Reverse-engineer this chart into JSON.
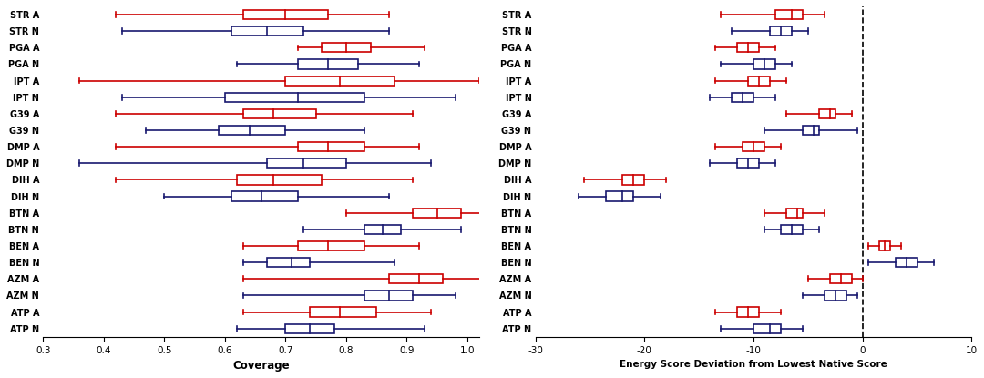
{
  "pair_names": [
    "STR",
    "PGA",
    "IPT",
    "G39",
    "DMP",
    "DIH",
    "BTN",
    "BEN",
    "AZM",
    "ATP"
  ],
  "red_color": "#CC0000",
  "blue_color": "#191970",
  "coverage": {
    "red": [
      [
        0.42,
        0.63,
        0.7,
        0.77,
        0.87
      ],
      [
        0.72,
        0.76,
        0.8,
        0.84,
        0.93
      ],
      [
        0.36,
        0.7,
        0.79,
        0.88,
        1.02
      ],
      [
        0.42,
        0.63,
        0.68,
        0.75,
        0.91
      ],
      [
        0.42,
        0.72,
        0.77,
        0.83,
        0.92
      ],
      [
        0.42,
        0.62,
        0.68,
        0.76,
        0.91
      ],
      [
        0.8,
        0.91,
        0.95,
        0.99,
        1.03
      ],
      [
        0.63,
        0.72,
        0.77,
        0.83,
        0.92
      ],
      [
        0.63,
        0.87,
        0.92,
        0.96,
        1.03
      ],
      [
        0.63,
        0.74,
        0.79,
        0.85,
        0.94
      ]
    ],
    "blue": [
      [
        0.43,
        0.61,
        0.67,
        0.73,
        0.87
      ],
      [
        0.62,
        0.72,
        0.77,
        0.82,
        0.92
      ],
      [
        0.43,
        0.6,
        0.72,
        0.83,
        0.98
      ],
      [
        0.47,
        0.59,
        0.64,
        0.7,
        0.83
      ],
      [
        0.36,
        0.67,
        0.73,
        0.8,
        0.94
      ],
      [
        0.5,
        0.61,
        0.66,
        0.72,
        0.87
      ],
      [
        0.73,
        0.83,
        0.86,
        0.89,
        0.99
      ],
      [
        0.63,
        0.67,
        0.71,
        0.74,
        0.88
      ],
      [
        0.63,
        0.83,
        0.87,
        0.91,
        0.98
      ],
      [
        0.62,
        0.7,
        0.74,
        0.78,
        0.93
      ]
    ]
  },
  "energy": {
    "red": [
      [
        -13.0,
        -8.0,
        -6.5,
        -5.5,
        -3.5
      ],
      [
        -13.5,
        -11.5,
        -10.5,
        -9.5,
        -8.0
      ],
      [
        -13.5,
        -10.5,
        -9.5,
        -8.5,
        -7.0
      ],
      [
        -7.0,
        -4.0,
        -3.0,
        -2.5,
        -1.0
      ],
      [
        -13.5,
        -11.0,
        -10.0,
        -9.0,
        -7.5
      ],
      [
        -25.5,
        -22.0,
        -21.0,
        -20.0,
        -18.0
      ],
      [
        -9.0,
        -7.0,
        -6.0,
        -5.5,
        -3.5
      ],
      [
        0.5,
        1.5,
        2.0,
        2.5,
        3.5
      ],
      [
        -5.0,
        -3.0,
        -2.0,
        -1.0,
        0.0
      ],
      [
        -13.5,
        -11.5,
        -10.5,
        -9.5,
        -7.5
      ]
    ],
    "blue": [
      [
        -12.0,
        -8.5,
        -7.5,
        -6.5,
        -5.0
      ],
      [
        -13.0,
        -10.0,
        -9.0,
        -8.0,
        -6.5
      ],
      [
        -14.0,
        -12.0,
        -11.0,
        -10.0,
        -8.0
      ],
      [
        -9.0,
        -5.5,
        -4.5,
        -4.0,
        -0.5
      ],
      [
        -14.0,
        -11.5,
        -10.5,
        -9.5,
        -8.0
      ],
      [
        -26.0,
        -23.5,
        -22.0,
        -21.0,
        -18.5
      ],
      [
        -9.0,
        -7.5,
        -6.5,
        -5.5,
        -4.0
      ],
      [
        0.5,
        3.0,
        4.0,
        5.0,
        6.5
      ],
      [
        -5.5,
        -3.5,
        -2.5,
        -1.5,
        -0.5
      ],
      [
        -13.0,
        -10.0,
        -8.5,
        -7.5,
        -5.5
      ]
    ]
  }
}
